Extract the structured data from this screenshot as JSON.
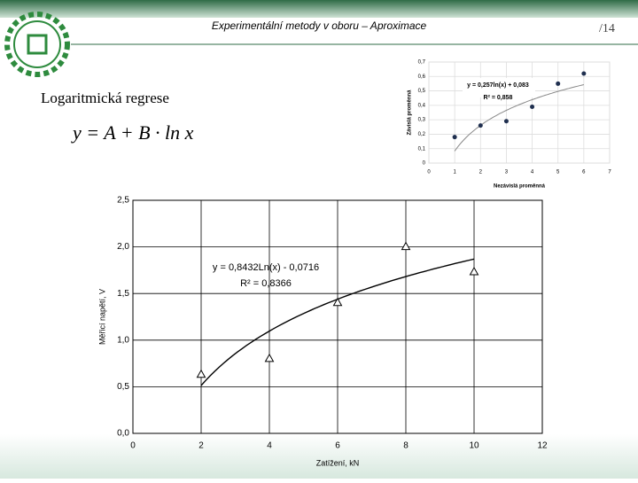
{
  "header": {
    "title": "Experimentální metody v oboru – Aproximace",
    "page": "/14"
  },
  "slide": {
    "heading": "Logaritmická regrese",
    "formula": "y = A + B · ln x"
  },
  "chart_data": [
    {
      "type": "scatter",
      "marker": "triangle",
      "color": "#000000",
      "x_label": "Zatížení, kN",
      "y_label": "Měřicí napětí, V",
      "x": [
        2,
        4,
        6,
        8,
        10
      ],
      "values": [
        0.63,
        0.8,
        1.4,
        2.0,
        1.73
      ],
      "xlim": [
        0,
        12
      ],
      "xticks": [
        0,
        2,
        4,
        6,
        8,
        10,
        12
      ],
      "ylim": [
        0,
        2.5
      ],
      "yticks": [
        {
          "value": 0,
          "label": "0,0"
        },
        {
          "value": 0.5,
          "label": "0,5"
        },
        {
          "value": 1.0,
          "label": "1,0"
        },
        {
          "value": 1.5,
          "label": "1,5"
        },
        {
          "value": 2.0,
          "label": "2,0"
        },
        {
          "value": 2.5,
          "label": "2,5"
        }
      ],
      "grid": true,
      "trendline": {
        "slope": 0.8432,
        "intercept": -0.0716,
        "label": "y = 0,8432Ln(x) - 0,0716",
        "r2": 0.8366,
        "r2_label": "R² = 0,8366"
      }
    },
    {
      "type": "scatter",
      "marker": "dot",
      "color": "#1f2f4f",
      "x_label": "Nezávislá proměnná",
      "y_label": "Závislá proměnná",
      "x": [
        1,
        2,
        3,
        4,
        5,
        6
      ],
      "values": [
        0.18,
        0.26,
        0.29,
        0.39,
        0.55,
        0.62
      ],
      "xlim": [
        0,
        7
      ],
      "xticks": [
        0,
        1,
        2,
        3,
        4,
        5,
        6,
        7
      ],
      "ylim": [
        0,
        0.7
      ],
      "yticks": [
        0,
        {
          "value": 0.1,
          "label": "0,1"
        },
        {
          "value": 0.2,
          "label": "0,2"
        },
        {
          "value": 0.3,
          "label": "0,3"
        },
        {
          "value": 0.4,
          "label": "0,4"
        },
        {
          "value": 0.5,
          "label": "0,5"
        },
        {
          "value": 0.6,
          "label": "0,6"
        },
        {
          "value": 0.7,
          "label": "0,7"
        }
      ],
      "grid": true,
      "trendline": {
        "slope": 0.257,
        "intercept": 0.083,
        "label": "y = 0,257ln(x) + 0,083",
        "r2": 0.858,
        "r2_label": "R² = 0,858"
      }
    }
  ]
}
